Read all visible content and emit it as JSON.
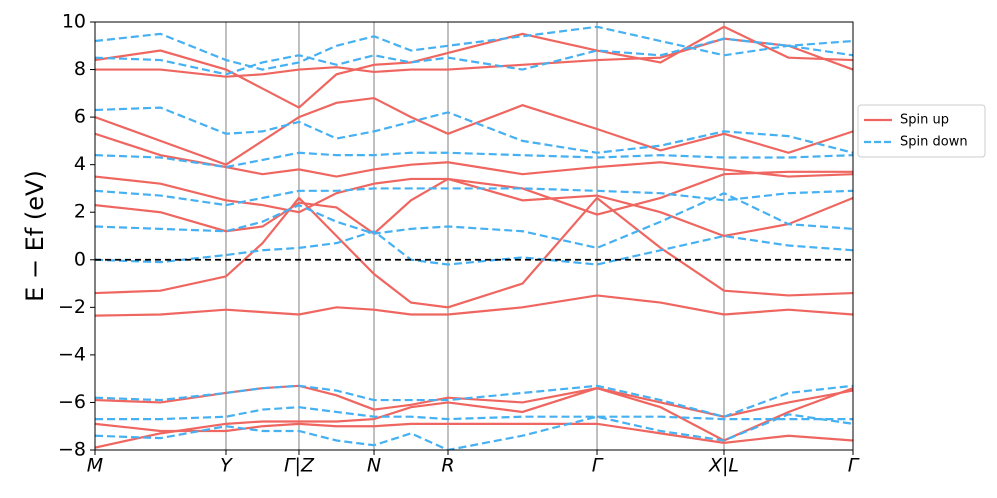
{
  "chart_data": {
    "type": "line",
    "ylabel": "E − Ef (eV)",
    "xlim": [
      0,
      1
    ],
    "ylim": [
      -8,
      10
    ],
    "xticks": [
      {
        "value": 0,
        "label": "M"
      },
      {
        "value": 0.1728,
        "label": "Y"
      },
      {
        "value": 0.2691,
        "label": "Γ|Z"
      },
      {
        "value": 0.3681,
        "label": "N"
      },
      {
        "value": 0.4657,
        "label": "R"
      },
      {
        "value": 0.6623,
        "label": "Γ"
      },
      {
        "value": 0.8298,
        "label": "X|L"
      },
      {
        "value": 1,
        "label": "Γ"
      }
    ],
    "yticks": [
      {
        "value": -8,
        "label": "−8"
      },
      {
        "value": -6,
        "label": "−6"
      },
      {
        "value": -4,
        "label": "−4"
      },
      {
        "value": -2,
        "label": "−2"
      },
      0,
      2,
      4,
      6,
      8,
      10
    ],
    "hline": 0,
    "legend": "right",
    "x": [
      0,
      0.0864,
      0.1728,
      0.221,
      0.2691,
      0.3186,
      0.3681,
      0.4169,
      0.4657,
      0.564,
      0.6623,
      0.7461,
      0.8298,
      0.9149,
      1
    ],
    "series": [
      {
        "name": "Spin up",
        "color": "#ef6660",
        "dashed": false,
        "bands": [
          [
            -2.35,
            -2.3,
            -2.1,
            -2.2,
            -2.3,
            -2.0,
            -2.1,
            -2.3,
            -2.3,
            -2.0,
            -1.5,
            -1.8,
            -2.3,
            -2.1,
            -2.3
          ],
          [
            -1.4,
            -1.3,
            -0.7,
            0.7,
            2.6,
            1.0,
            -0.6,
            -1.8,
            -2.0,
            -1.0,
            2.6,
            0.5,
            -1.3,
            -1.5,
            -1.4
          ],
          [
            2.3,
            2.0,
            1.2,
            1.4,
            2.4,
            2.2,
            1.1,
            2.5,
            3.4,
            2.5,
            2.7,
            2.0,
            1.0,
            1.5,
            2.6
          ],
          [
            3.5,
            3.2,
            2.5,
            2.3,
            2.0,
            2.8,
            3.2,
            3.4,
            3.4,
            3.0,
            1.9,
            2.6,
            3.6,
            3.7,
            3.7
          ],
          [
            5.3,
            4.4,
            3.9,
            3.6,
            3.8,
            3.5,
            3.8,
            4.0,
            4.1,
            3.6,
            3.9,
            4.1,
            3.8,
            3.5,
            3.6
          ],
          [
            6.0,
            5.0,
            4.0,
            5.0,
            6.0,
            6.6,
            6.8,
            6.0,
            5.3,
            6.5,
            5.5,
            4.6,
            5.3,
            4.5,
            5.4
          ],
          [
            8.0,
            8.0,
            7.7,
            7.8,
            8.0,
            8.1,
            7.9,
            8.0,
            8.0,
            8.2,
            8.4,
            8.5,
            9.3,
            9.0,
            8.0
          ],
          [
            8.4,
            8.8,
            8.0,
            7.2,
            6.4,
            7.8,
            8.2,
            8.3,
            8.7,
            9.5,
            8.8,
            8.3,
            9.8,
            8.5,
            8.4
          ],
          [
            -6.9,
            -7.2,
            -7.2,
            -7.0,
            -6.9,
            -7.0,
            -7.0,
            -6.9,
            -6.9,
            -6.9,
            -6.9,
            -7.3,
            -7.7,
            -7.4,
            -7.6
          ],
          [
            -7.9,
            -7.3,
            -6.9,
            -6.8,
            -6.8,
            -6.8,
            -6.7,
            -6.2,
            -6.0,
            -6.4,
            -5.4,
            -6.2,
            -7.6,
            -6.4,
            -5.4
          ],
          [
            -5.9,
            -6.0,
            -5.6,
            -5.4,
            -5.3,
            -5.7,
            -6.3,
            -6.1,
            -5.8,
            -6.0,
            -5.4,
            -6.0,
            -6.6,
            -6.0,
            -5.5
          ]
        ]
      },
      {
        "name": "Spin down",
        "color": "#45b0f2",
        "dashed": true,
        "bands": [
          [
            0.0,
            -0.1,
            0.2,
            0.4,
            0.5,
            0.7,
            1.2,
            0.0,
            -0.2,
            0.1,
            -0.2,
            0.4,
            1.0,
            0.6,
            0.4
          ],
          [
            1.4,
            1.3,
            1.2,
            1.6,
            2.3,
            1.6,
            1.1,
            1.3,
            1.4,
            1.2,
            0.5,
            1.6,
            2.8,
            1.5,
            1.3
          ],
          [
            2.9,
            2.7,
            2.3,
            2.6,
            2.9,
            2.9,
            3.0,
            3.0,
            3.0,
            3.0,
            2.9,
            2.8,
            2.5,
            2.8,
            2.9
          ],
          [
            4.4,
            4.3,
            3.9,
            4.2,
            4.5,
            4.4,
            4.4,
            4.5,
            4.5,
            4.4,
            4.3,
            4.4,
            4.3,
            4.3,
            4.4
          ],
          [
            6.3,
            6.4,
            5.3,
            5.4,
            5.8,
            5.1,
            5.4,
            5.8,
            6.2,
            5.0,
            4.5,
            4.8,
            5.4,
            5.2,
            4.5
          ],
          [
            8.5,
            8.4,
            7.8,
            8.3,
            8.6,
            8.2,
            8.6,
            8.3,
            8.5,
            8.0,
            8.8,
            8.6,
            9.3,
            9.0,
            8.6
          ],
          [
            9.2,
            9.5,
            8.4,
            8.0,
            8.3,
            9.0,
            9.4,
            8.8,
            9.0,
            9.4,
            9.8,
            9.2,
            8.6,
            9.0,
            9.2
          ],
          [
            -6.7,
            -6.7,
            -6.6,
            -6.3,
            -6.2,
            -6.4,
            -6.6,
            -6.6,
            -6.7,
            -6.6,
            -6.6,
            -6.6,
            -6.7,
            -6.7,
            -6.7
          ],
          [
            -7.4,
            -7.5,
            -7.0,
            -7.2,
            -7.2,
            -7.6,
            -7.8,
            -7.3,
            -8.0,
            -7.4,
            -6.6,
            -7.2,
            -7.6,
            -6.5,
            -6.9
          ],
          [
            -5.8,
            -5.9,
            -5.6,
            -5.4,
            -5.3,
            -5.5,
            -5.9,
            -5.9,
            -5.9,
            -5.6,
            -5.3,
            -5.9,
            -6.6,
            -5.6,
            -5.3
          ]
        ]
      }
    ]
  }
}
